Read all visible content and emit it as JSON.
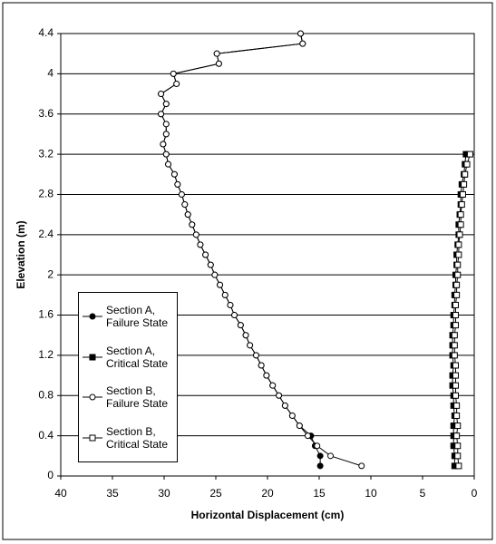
{
  "chart_data": {
    "type": "line",
    "x_label": "Horizontal Displacement (cm)",
    "y_label": "Elevation (m)",
    "xlim": [
      40,
      0
    ],
    "xticks": [
      40,
      35,
      30,
      25,
      20,
      15,
      10,
      5,
      0
    ],
    "ylim": [
      0,
      4.4
    ],
    "yticks": [
      0,
      0.4,
      0.8,
      1.2,
      1.6,
      2,
      2.4,
      2.8,
      3.2,
      3.6,
      4,
      4.4
    ],
    "grid": true,
    "series": [
      {
        "name": "Section A, Failure State",
        "color": "#000000",
        "marker": "filled-circle",
        "x": [
          14.9,
          14.9,
          15.4,
          15.8,
          16.9,
          17.6,
          18.3,
          18.9,
          19.5,
          20.1,
          20.6,
          21.1,
          21.7,
          22.1,
          22.6,
          23.2,
          23.6,
          24.1,
          24.6,
          25.1,
          25.5,
          26.0,
          26.5,
          26.9,
          27.3,
          27.7,
          28.0,
          28.3,
          28.7,
          29.0,
          29.6,
          29.8,
          30.1,
          29.8,
          29.8,
          30.3,
          29.8,
          30.3,
          28.8,
          29.1,
          24.7,
          24.9,
          16.6,
          16.8
        ],
        "y": [
          0.1,
          0.2,
          0.3,
          0.4,
          0.5,
          0.6,
          0.7,
          0.8,
          0.9,
          1.0,
          1.1,
          1.2,
          1.3,
          1.4,
          1.5,
          1.6,
          1.7,
          1.8,
          1.9,
          2.0,
          2.1,
          2.2,
          2.3,
          2.4,
          2.5,
          2.6,
          2.7,
          2.8,
          2.9,
          3.0,
          3.1,
          3.2,
          3.3,
          3.4,
          3.5,
          3.6,
          3.7,
          3.8,
          3.9,
          4.0,
          4.1,
          4.2,
          4.3,
          4.4
        ]
      },
      {
        "name": "Section A, Critical State",
        "color": "#000000",
        "marker": "filled-square",
        "x": [
          1.9,
          1.9,
          2.0,
          2.0,
          2.0,
          1.9,
          2.0,
          2.0,
          2.1,
          2.1,
          2.0,
          2.1,
          2.1,
          2.1,
          2.0,
          2.0,
          1.9,
          1.9,
          1.8,
          1.8,
          1.7,
          1.7,
          1.6,
          1.5,
          1.5,
          1.4,
          1.3,
          1.3,
          1.2,
          1.0,
          0.9,
          0.8
        ],
        "y": [
          0.1,
          0.2,
          0.3,
          0.4,
          0.5,
          0.6,
          0.7,
          0.8,
          0.9,
          1.0,
          1.1,
          1.2,
          1.3,
          1.4,
          1.5,
          1.6,
          1.7,
          1.8,
          1.9,
          2.0,
          2.1,
          2.2,
          2.3,
          2.4,
          2.5,
          2.6,
          2.7,
          2.8,
          2.9,
          3.0,
          3.1,
          3.2
        ]
      },
      {
        "name": "Section B, Failure State",
        "color": "#000000",
        "marker": "open-circle",
        "x": [
          10.9,
          13.9,
          15.2,
          16.1,
          16.9,
          17.6,
          18.3,
          18.9,
          19.5,
          20.1,
          20.6,
          21.1,
          21.7,
          22.1,
          22.6,
          23.2,
          23.6,
          24.1,
          24.6,
          25.1,
          25.5,
          26.0,
          26.5,
          26.9,
          27.3,
          27.7,
          28.0,
          28.3,
          28.7,
          29.0,
          29.6,
          29.8,
          30.1,
          29.8,
          29.8,
          30.3,
          29.8,
          30.3,
          28.8,
          29.1,
          24.7,
          24.9,
          16.6,
          16.8
        ],
        "y": [
          0.1,
          0.2,
          0.3,
          0.4,
          0.5,
          0.6,
          0.7,
          0.8,
          0.9,
          1.0,
          1.1,
          1.2,
          1.3,
          1.4,
          1.5,
          1.6,
          1.7,
          1.8,
          1.9,
          2.0,
          2.1,
          2.2,
          2.3,
          2.4,
          2.5,
          2.6,
          2.7,
          2.8,
          2.9,
          3.0,
          3.1,
          3.2,
          3.3,
          3.4,
          3.5,
          3.6,
          3.7,
          3.8,
          3.9,
          4.0,
          4.1,
          4.2,
          4.3,
          4.4
        ]
      },
      {
        "name": "Section B, Critical State",
        "color": "#000000",
        "marker": "open-square",
        "x": [
          1.5,
          1.6,
          1.6,
          1.7,
          1.6,
          1.7,
          1.7,
          1.8,
          1.8,
          1.8,
          1.8,
          1.9,
          1.9,
          1.9,
          1.8,
          1.8,
          1.8,
          1.7,
          1.7,
          1.6,
          1.6,
          1.5,
          1.5,
          1.4,
          1.3,
          1.3,
          1.2,
          1.1,
          1.0,
          0.9,
          0.7,
          0.4
        ],
        "y": [
          0.1,
          0.2,
          0.3,
          0.4,
          0.5,
          0.6,
          0.7,
          0.8,
          0.9,
          1.0,
          1.1,
          1.2,
          1.3,
          1.4,
          1.5,
          1.6,
          1.7,
          1.8,
          1.9,
          2.0,
          2.1,
          2.2,
          2.3,
          2.4,
          2.5,
          2.6,
          2.7,
          2.8,
          2.9,
          3.0,
          3.1,
          3.2
        ]
      }
    ]
  }
}
